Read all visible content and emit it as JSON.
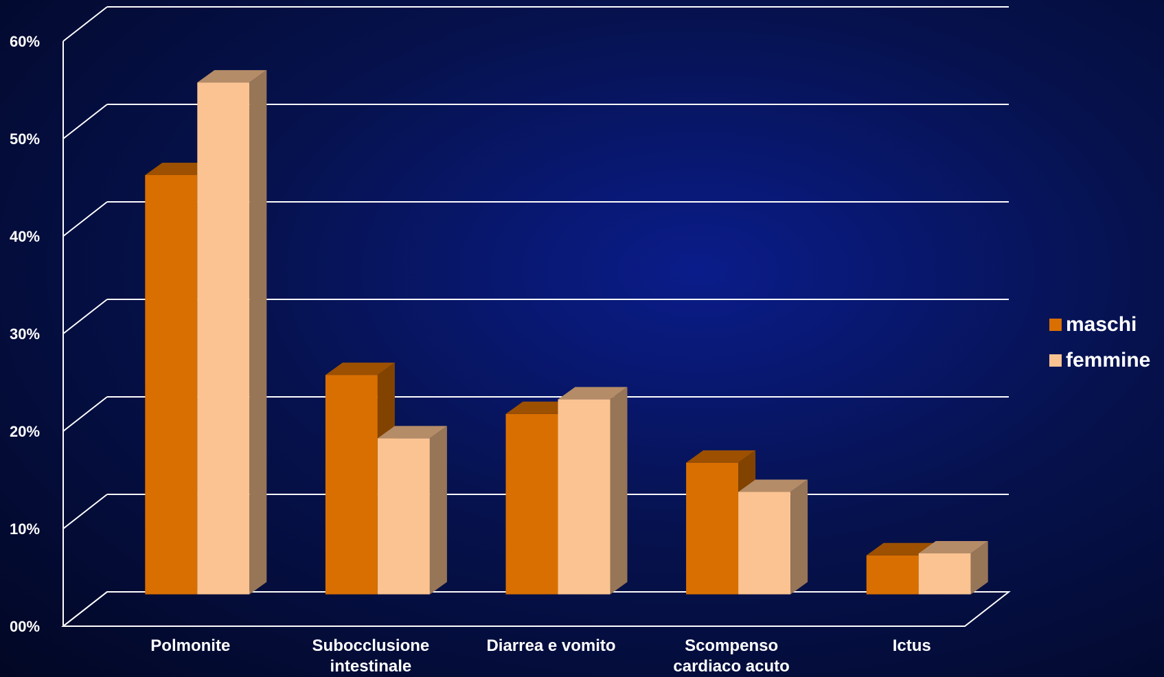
{
  "chart_data": {
    "type": "bar",
    "title": "",
    "xlabel": "",
    "ylabel": "",
    "categories": [
      [
        "Polmonite"
      ],
      [
        "Subocclusione",
        "intestinale"
      ],
      [
        "Diarrea e vomito"
      ],
      [
        "Scompenso",
        "cardiaco acuto"
      ],
      [
        "Ictus"
      ]
    ],
    "series": [
      {
        "name": "maschi",
        "values": [
          43,
          22.5,
          18.5,
          13.5,
          4
        ],
        "color": "#d96f00"
      },
      {
        "name": "femmine",
        "values": [
          52.5,
          16,
          20,
          10.5,
          4.2
        ],
        "color": "#fbc391"
      }
    ],
    "y_ticks": [
      "00%",
      "10%",
      "20%",
      "30%",
      "40%",
      "50%",
      "60%"
    ],
    "ylim": [
      0,
      60
    ],
    "grid": true,
    "legend_position": "right",
    "style": "3d-clustered-column"
  }
}
